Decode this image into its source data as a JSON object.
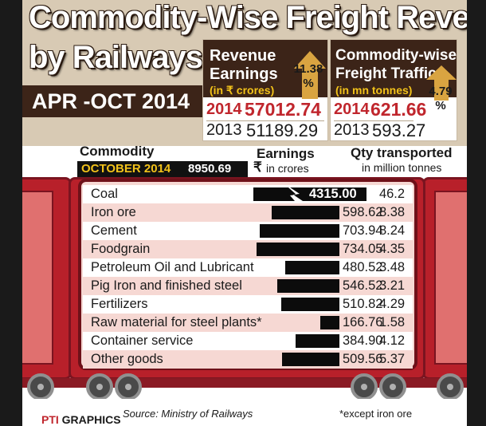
{
  "header": {
    "title_line1": "Commodity-Wise Freight Revenue",
    "title_line2": "by Railways",
    "period": "APR -OCT 2014"
  },
  "revenue_box": {
    "title_line1": "Revenue",
    "title_line2": "Earnings",
    "unit": "(in ₹ crores)",
    "change_value": "11.38",
    "change_unit": "%",
    "current_year": "2014",
    "current_value": "57012.74",
    "previous_year": "2013",
    "previous_value": "51189.29"
  },
  "traffic_box": {
    "title_line1": "Commodity-wise",
    "title_line2": "Freight Traffic",
    "unit": "(in mn tonnes)",
    "change_value": "4.79",
    "change_unit": "%",
    "current_year": "2014",
    "current_value": "621.66",
    "previous_year": "2013",
    "previous_value": "593.27"
  },
  "columns": {
    "commodity": "Commodity",
    "earnings": "Earnings",
    "earnings_unit": "in crores",
    "earnings_symbol": "₹",
    "qty": "Qty transported",
    "qty_unit": "in million tonnes"
  },
  "october": {
    "label": "OCTOBER 2014",
    "value": "8950.69"
  },
  "chart_data": {
    "type": "bar",
    "orientation": "horizontal",
    "categories": [
      "Coal",
      "Iron ore",
      "Cement",
      "Foodgrain",
      "Petroleum Oil and Lubricant",
      "Pig Iron and finished steel",
      "Fertilizers",
      "Raw material for steel plants*",
      "Container service",
      "Other goods"
    ],
    "earnings": [
      4315.0,
      598.62,
      703.94,
      734.05,
      480.52,
      546.52,
      510.82,
      166.76,
      384.9,
      509.56
    ],
    "earnings_labels": [
      "4315.00",
      "598.62",
      "703.94",
      "734.05",
      "480.52",
      "546.52",
      "510.82",
      "166.76",
      "384.90",
      "509.56"
    ],
    "qty_transported": [
      46.2,
      8.38,
      8.24,
      4.35,
      3.48,
      3.21,
      4.29,
      1.58,
      4.12,
      5.37
    ],
    "qty_labels": [
      "46.2",
      "8.38",
      "8.24",
      "4.35",
      "3.48",
      "3.21",
      "4.29",
      "1.58",
      "4.12",
      "5.37"
    ],
    "axis_break_on": "Coal",
    "bar_color": "#0c0c0c"
  },
  "footer": {
    "source": "Source: Ministry of Railways",
    "note": "*except iron ore",
    "credit_mark": "PTI",
    "credit": "GRAPHICS"
  },
  "colors": {
    "header_bg": "#d8cab4",
    "dark_brown": "#3c2418",
    "accent_red": "#c0262d",
    "wagon_red": "#b8202a",
    "row_pink": "#f6d8d3",
    "arrow_gold": "#d9a441"
  }
}
